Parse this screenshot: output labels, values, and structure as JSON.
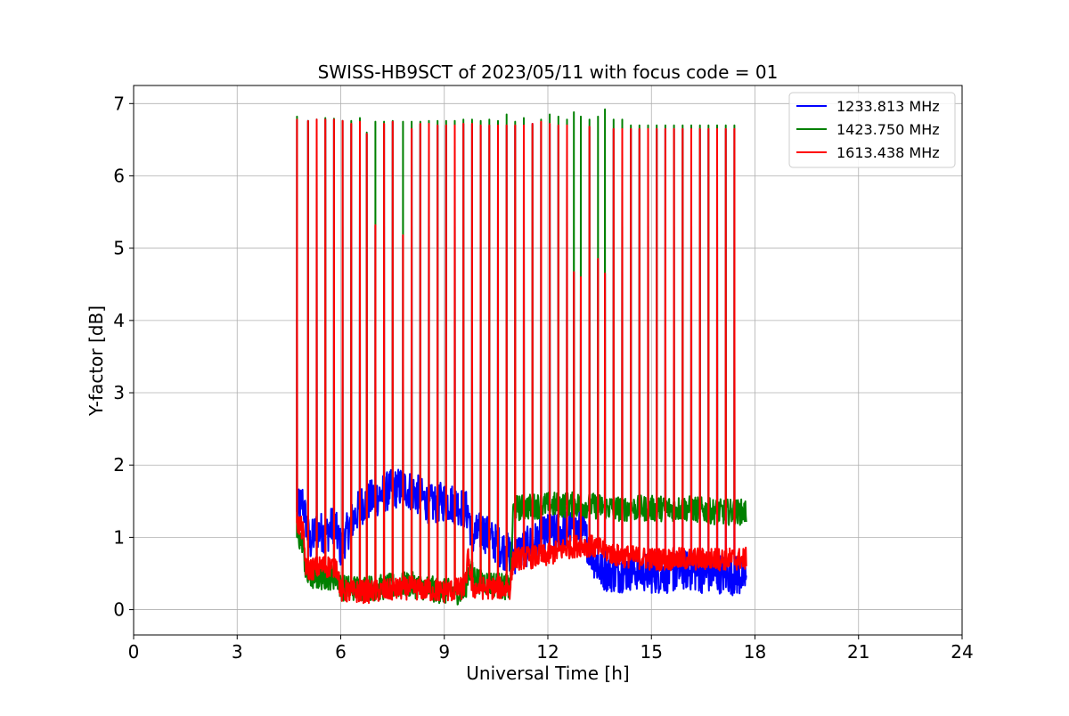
{
  "chart_data": {
    "type": "line",
    "title": "SWISS-HB9SCT of 2023/05/11 with focus code = 01",
    "xlabel": "Universal Time [h]",
    "ylabel": "Y-factor [dB]",
    "xlim": [
      0,
      24
    ],
    "ylim": [
      -0.35,
      7.25
    ],
    "xticks": [
      0,
      3,
      6,
      9,
      12,
      15,
      18,
      21,
      24
    ],
    "yticks": [
      0,
      1,
      2,
      3,
      4,
      5,
      6,
      7
    ],
    "grid": true,
    "legend_position": "top-right",
    "series": [
      {
        "name": "1233.813 MHz",
        "color": "#0000ff",
        "baseline": [
          [
            4.75,
            1.35
          ],
          [
            4.9,
            1.5
          ],
          [
            5.1,
            0.9
          ],
          [
            5.3,
            1.1
          ],
          [
            5.6,
            1.05
          ],
          [
            5.8,
            1.2
          ],
          [
            6.0,
            0.85
          ],
          [
            6.3,
            1.2
          ],
          [
            6.6,
            1.45
          ],
          [
            7.0,
            1.55
          ],
          [
            7.4,
            1.65
          ],
          [
            7.8,
            1.7
          ],
          [
            8.2,
            1.6
          ],
          [
            8.6,
            1.45
          ],
          [
            9.0,
            1.5
          ],
          [
            9.4,
            1.45
          ],
          [
            9.7,
            1.35
          ],
          [
            9.8,
            1.0
          ],
          [
            10.1,
            1.1
          ],
          [
            10.4,
            0.95
          ],
          [
            10.8,
            0.8
          ],
          [
            11.0,
            0.75
          ],
          [
            11.5,
            0.9
          ],
          [
            12.0,
            1.05
          ],
          [
            12.5,
            1.1
          ],
          [
            13.0,
            1.1
          ],
          [
            13.3,
            0.75
          ],
          [
            13.5,
            0.55
          ],
          [
            14.0,
            0.5
          ],
          [
            14.5,
            0.55
          ],
          [
            15.0,
            0.5
          ],
          [
            15.5,
            0.5
          ],
          [
            16.0,
            0.55
          ],
          [
            16.5,
            0.5
          ],
          [
            17.0,
            0.5
          ],
          [
            17.75,
            0.45
          ]
        ]
      },
      {
        "name": "1423.750 MHz",
        "color": "#008000",
        "baseline": [
          [
            4.75,
            1.0
          ],
          [
            4.9,
            0.95
          ],
          [
            5.0,
            0.45
          ],
          [
            5.5,
            0.45
          ],
          [
            5.9,
            0.45
          ],
          [
            6.0,
            0.3
          ],
          [
            7.0,
            0.3
          ],
          [
            8.0,
            0.35
          ],
          [
            8.5,
            0.3
          ],
          [
            9.0,
            0.25
          ],
          [
            9.6,
            0.25
          ],
          [
            9.7,
            0.55
          ],
          [
            10.0,
            0.4
          ],
          [
            10.5,
            0.35
          ],
          [
            10.9,
            0.3
          ],
          [
            11.0,
            1.4
          ],
          [
            12.0,
            1.45
          ],
          [
            12.5,
            1.45
          ],
          [
            13.0,
            1.45
          ],
          [
            14.0,
            1.4
          ],
          [
            15.0,
            1.4
          ],
          [
            16.0,
            1.4
          ],
          [
            17.0,
            1.35
          ],
          [
            17.75,
            1.35
          ]
        ],
        "peaks": [
          6.82,
          6.76,
          6.78,
          6.8,
          6.79,
          6.76,
          6.76,
          6.8,
          6.6,
          6.75,
          6.75,
          6.76,
          6.75,
          6.75,
          6.75,
          6.76,
          6.76,
          6.76,
          6.76,
          6.78,
          6.78,
          6.76,
          6.78,
          6.76,
          6.85,
          6.75,
          6.8,
          6.7,
          6.78,
          6.85,
          6.82,
          6.78,
          6.88,
          6.82,
          6.78,
          6.82,
          6.92,
          6.78,
          6.78
        ]
      },
      {
        "name": "1613.438 MHz",
        "color": "#ff0000",
        "baseline": [
          [
            4.75,
            1.2
          ],
          [
            4.9,
            1.1
          ],
          [
            5.0,
            0.55
          ],
          [
            5.5,
            0.6
          ],
          [
            5.9,
            0.6
          ],
          [
            6.0,
            0.25
          ],
          [
            7.0,
            0.25
          ],
          [
            8.0,
            0.3
          ],
          [
            9.0,
            0.25
          ],
          [
            9.6,
            0.3
          ],
          [
            9.7,
            0.75
          ],
          [
            9.8,
            0.3
          ],
          [
            10.5,
            0.3
          ],
          [
            10.9,
            0.3
          ],
          [
            11.0,
            0.7
          ],
          [
            12.0,
            0.75
          ],
          [
            12.5,
            0.85
          ],
          [
            13.0,
            0.9
          ],
          [
            13.5,
            0.85
          ],
          [
            14.0,
            0.75
          ],
          [
            15.0,
            0.7
          ],
          [
            16.0,
            0.7
          ],
          [
            17.0,
            0.7
          ],
          [
            17.75,
            0.7
          ]
        ],
        "spike_times": [
          4.73,
          5.05,
          5.3,
          5.55,
          5.8,
          6.05,
          6.3,
          6.55,
          6.75,
          7.0,
          7.25,
          7.5,
          7.8,
          8.05,
          8.3,
          8.55,
          8.8,
          9.05,
          9.3,
          9.55,
          9.8,
          10.05,
          10.3,
          10.55,
          10.8,
          11.05,
          11.3,
          11.55,
          11.8,
          12.05,
          12.3,
          12.55,
          12.75,
          12.95,
          13.2,
          13.45,
          13.65,
          13.9,
          14.15,
          14.4,
          14.65,
          14.9,
          15.15,
          15.4,
          15.65,
          15.9,
          16.15,
          16.4,
          16.65,
          16.9,
          17.15,
          17.4
        ],
        "peaks": [
          6.78,
          6.76,
          6.78,
          6.78,
          6.78,
          6.76,
          6.72,
          6.75,
          6.58,
          5.32,
          6.72,
          6.75,
          5.18,
          6.65,
          6.72,
          6.72,
          6.7,
          6.7,
          6.7,
          6.72,
          6.72,
          6.7,
          6.7,
          6.7,
          6.7,
          6.7,
          6.7,
          6.72,
          6.75,
          6.72,
          6.7,
          6.7,
          4.67,
          4.6,
          6.68,
          4.85,
          4.65,
          6.65,
          6.65,
          6.65,
          6.65,
          6.65,
          6.65,
          6.65,
          6.65,
          6.65,
          6.65,
          6.65,
          6.65,
          6.65,
          6.65,
          6.65
        ]
      }
    ]
  }
}
